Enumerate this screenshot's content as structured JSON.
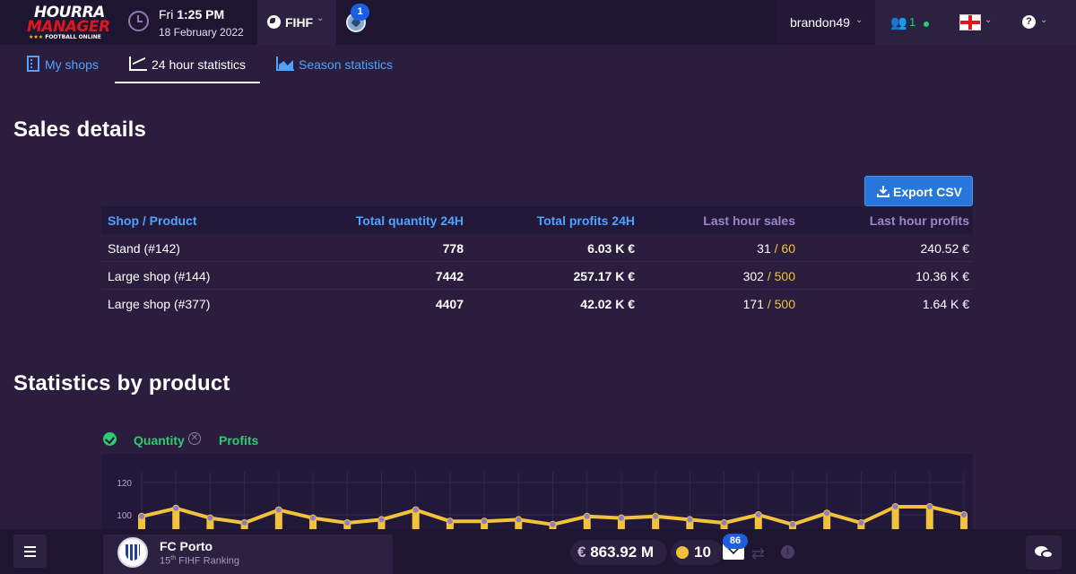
{
  "header": {
    "logo": {
      "line1": "HOURRA",
      "line2": "MANAGER",
      "line3": "FOOTBALL ONLINE",
      "stars": "★★★"
    },
    "day": "Fri",
    "time": "1:25 PM",
    "date": "18 February 2022",
    "federation": "FIHF",
    "notification_count": "1",
    "username": "brandon49",
    "friends_online": "1",
    "language": "en-GB",
    "help_icon": "?"
  },
  "tabs": [
    {
      "label": "My shops",
      "icon": "building-icon",
      "active": false
    },
    {
      "label": "24 hour statistics",
      "icon": "line-chart-icon",
      "active": true
    },
    {
      "label": "Season statistics",
      "icon": "area-chart-icon",
      "active": false
    }
  ],
  "sales": {
    "title": "Sales details",
    "export_label": "Export CSV",
    "columns": [
      "Shop / Product",
      "Total quantity 24H",
      "Total profits 24H",
      "Last hour sales",
      "Last hour profits"
    ],
    "rows": [
      {
        "shop": "Stand (#142)",
        "quantity": "778",
        "profits": "6.03 K €",
        "sales": "31",
        "capacity": "/ 60",
        "last_profit": "240.52 €"
      },
      {
        "shop": "Large shop (#144)",
        "quantity": "7442",
        "profits": "257.17 K €",
        "sales": "302",
        "capacity": "/ 500",
        "last_profit": "10.36 K €"
      },
      {
        "shop": "Large shop (#377)",
        "quantity": "4407",
        "profits": "42.02 K €",
        "sales": "171",
        "capacity": "/ 500",
        "last_profit": "1.64 K €"
      }
    ]
  },
  "product_stats": {
    "title": "Statistics by product",
    "legend": {
      "quantity": "Quantity",
      "profits": "Profits",
      "quantity_enabled": true,
      "profits_enabled": false
    }
  },
  "chart_data": {
    "type": "line",
    "yticks": [
      120,
      100
    ],
    "ylim": [
      60,
      130
    ],
    "series": [
      {
        "name": "Quantity",
        "color": "#f2c33a",
        "values": [
          99,
          104,
          98,
          95,
          103,
          98,
          95,
          97,
          103,
          96,
          96,
          97,
          94,
          99,
          98,
          99,
          97,
          95,
          100,
          94,
          101,
          95,
          105,
          105,
          100
        ]
      }
    ],
    "colors": {
      "line": "#f2c33a",
      "marker": "#8e7cc9"
    }
  },
  "footer": {
    "club_name": "FC Porto",
    "rank_num": "15",
    "rank_suffix": "th",
    "rank_text": "FIHF Ranking",
    "money_symbol": "€",
    "money": "863.92 M",
    "coins": "10",
    "mail_count": "86"
  }
}
